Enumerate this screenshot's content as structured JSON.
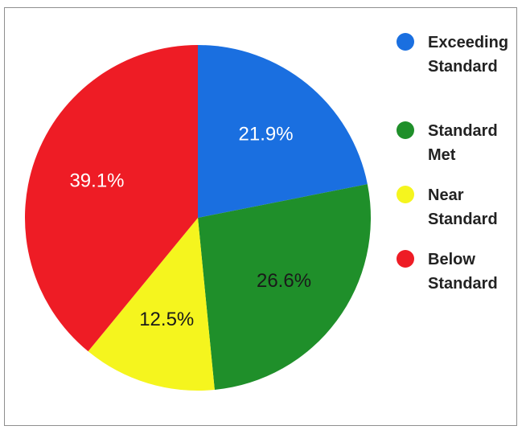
{
  "chart_data": {
    "type": "pie",
    "categories": [
      "Exceeding Standard",
      "Standard Met",
      "Near Standard",
      "Below Standard"
    ],
    "values": [
      21.9,
      26.6,
      12.5,
      39.1
    ],
    "data_labels": [
      "21.9%",
      "26.6%",
      "12.5%",
      "39.1%"
    ],
    "colors": [
      "#1a6fe0",
      "#1f8f2a",
      "#f5f51e",
      "#ee1c25"
    ],
    "label_colors": [
      "#ffffff",
      "#1a1a1a",
      "#1a1a1a",
      "#ffffff"
    ],
    "legend": "right",
    "legend_labels": [
      "Exceeding\nStandard",
      "Standard\nMet",
      "Near\nStandard",
      "Below\nStandard"
    ]
  }
}
